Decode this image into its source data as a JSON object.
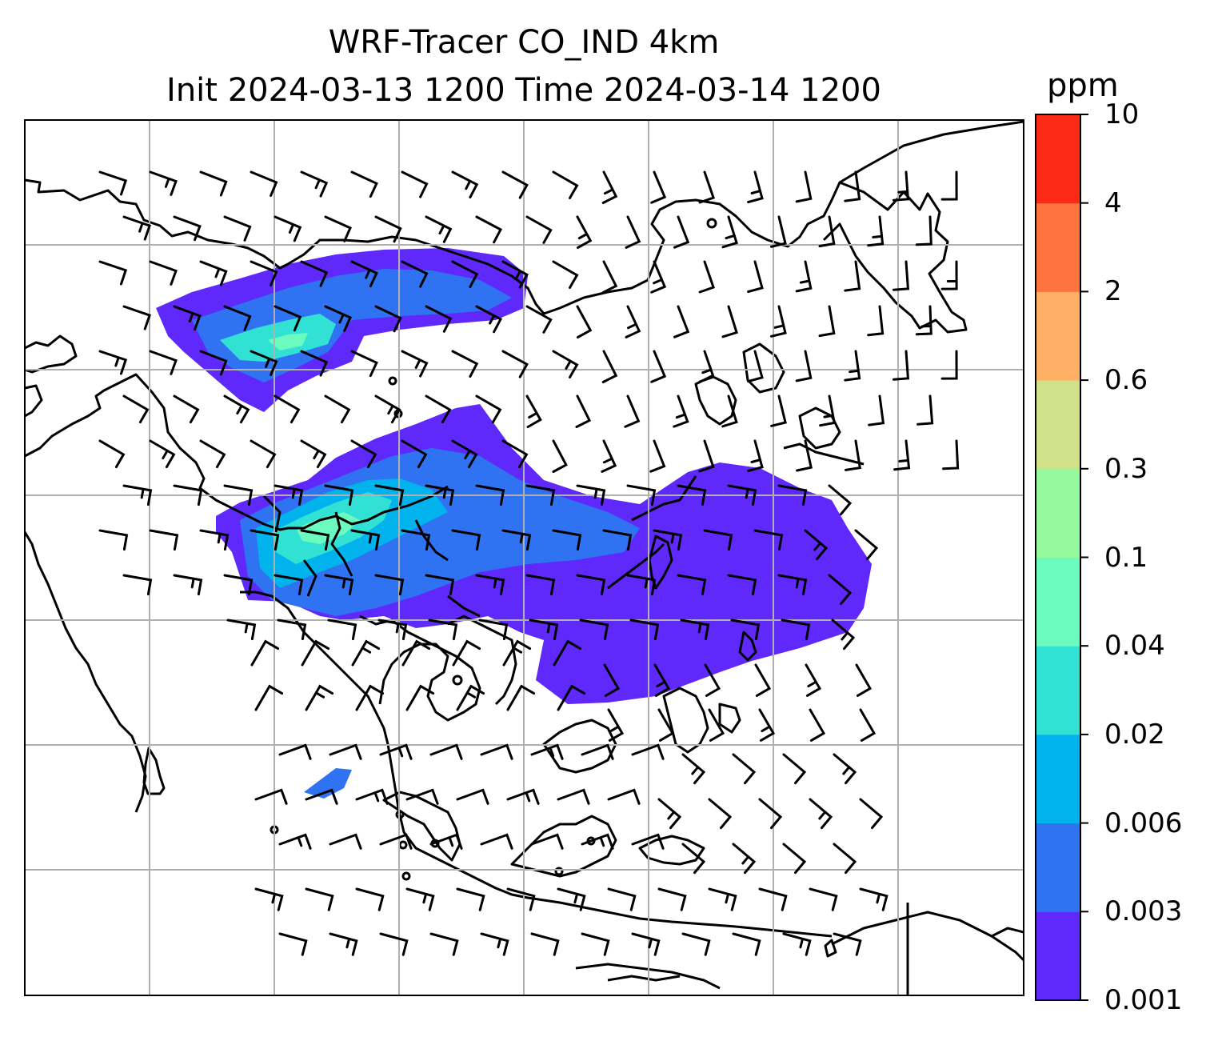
{
  "title": {
    "line1": "WRF-Tracer CO_IND 4km",
    "line2": "Init 2024-03-13 1200 Time 2024-03-14 1200"
  },
  "colorbar": {
    "unit": "ppm",
    "ticks": [
      "10",
      "4",
      "2",
      "0.6",
      "0.3",
      "0.1",
      "0.04",
      "0.02",
      "0.006",
      "0.003",
      "0.001"
    ],
    "colors": [
      "#6029fb",
      "#3073f2",
      "#00b3ed",
      "#31e1d4",
      "#6bfbbf",
      "#97f99d",
      "#d0e18a",
      "#feb064",
      "#fe733e",
      "#fe2917"
    ]
  },
  "map": {
    "gridlines": true,
    "coastline_color": "#000000",
    "grid_color": "#b0b0b0",
    "field_legend": "CO_IND concentration (ppm)",
    "wind_barbs": true
  }
}
